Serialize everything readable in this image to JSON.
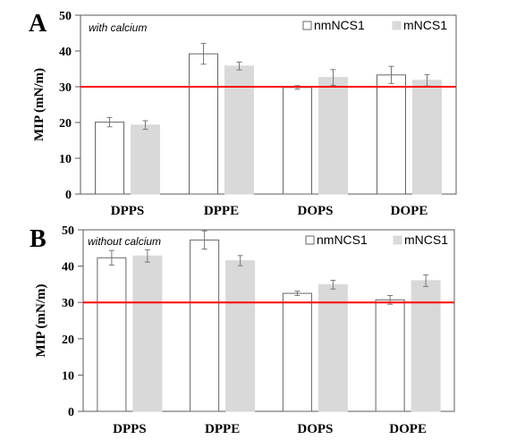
{
  "chart_data": [
    {
      "type": "bar",
      "panel_label": "A",
      "annotation": "with calcium",
      "ylabel": "MIP (mN/m)",
      "ylim": [
        0,
        50
      ],
      "yticks": [
        0,
        10,
        20,
        30,
        40,
        50
      ],
      "categories": [
        "DPPS",
        "DPPE",
        "DOPS",
        "DOPE"
      ],
      "reference_line": {
        "value": 30,
        "color": "#ff0000"
      },
      "legend_position": "top-right",
      "series": [
        {
          "name": "nmNCS1",
          "color": "#ffffff",
          "edge": "#666666",
          "values": [
            20.1,
            39.2,
            29.8,
            33.3
          ],
          "errors": [
            1.3,
            2.9,
            0.5,
            2.4
          ]
        },
        {
          "name": "mNCS1",
          "color": "#d9d9d9",
          "edge": "#d9d9d9",
          "values": [
            19.3,
            35.8,
            32.6,
            31.8
          ],
          "errors": [
            1.2,
            1.1,
            2.2,
            1.6
          ]
        }
      ]
    },
    {
      "type": "bar",
      "panel_label": "B",
      "annotation": "without calcium",
      "ylabel": "MIP (mN/m)",
      "ylim": [
        0,
        50
      ],
      "yticks": [
        0,
        10,
        20,
        30,
        40,
        50
      ],
      "categories": [
        "DPPS",
        "DPPE",
        "DOPS",
        "DOPE"
      ],
      "reference_line": {
        "value": 30,
        "color": "#ff0000"
      },
      "legend_position": "top-right",
      "series": [
        {
          "name": "nmNCS1",
          "color": "#ffffff",
          "edge": "#666666",
          "values": [
            42.3,
            47.2,
            32.5,
            30.7
          ],
          "errors": [
            2.0,
            2.5,
            0.6,
            1.2
          ]
        },
        {
          "name": "mNCS1",
          "color": "#d9d9d9",
          "edge": "#d9d9d9",
          "values": [
            42.8,
            41.5,
            34.9,
            36.0
          ],
          "errors": [
            1.7,
            1.4,
            1.2,
            1.6
          ]
        }
      ]
    }
  ]
}
